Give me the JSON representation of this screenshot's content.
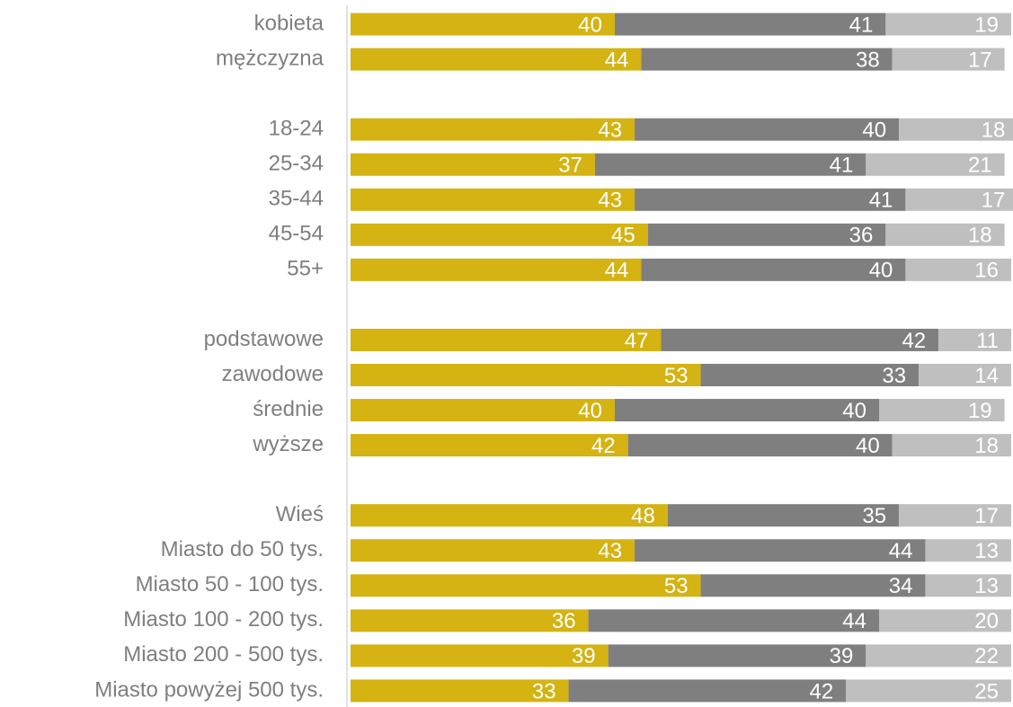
{
  "chart_data": {
    "type": "stacked_barh",
    "categories": [
      "kobieta",
      "mężczyzna",
      null,
      "18-24",
      "25-34",
      "35-44",
      "45-54",
      "55+",
      null,
      "podstawowe",
      "zawodowe",
      "średnie",
      "wyższe",
      null,
      "Wieś",
      "Miasto do 50 tys.",
      "Miasto 50 - 100 tys.",
      "Miasto 100 - 200 tys.",
      "Miasto 200 - 500 tys.",
      "Miasto powyżej 500 tys."
    ],
    "series": [
      {
        "color": "#d4b312",
        "values": [
          40,
          44,
          null,
          43,
          37,
          43,
          45,
          44,
          null,
          47,
          53,
          40,
          42,
          null,
          48,
          43,
          53,
          36,
          39,
          33
        ]
      },
      {
        "color": "#7f7f7f",
        "values": [
          41,
          38,
          null,
          40,
          41,
          41,
          36,
          40,
          null,
          42,
          33,
          40,
          40,
          null,
          35,
          44,
          34,
          44,
          39,
          42
        ]
      },
      {
        "color": "#bfbfbf",
        "values": [
          19,
          17,
          null,
          18,
          21,
          17,
          18,
          16,
          null,
          11,
          14,
          19,
          18,
          null,
          17,
          13,
          13,
          20,
          22,
          25
        ]
      }
    ],
    "xlim": [
      0,
      100
    ]
  }
}
